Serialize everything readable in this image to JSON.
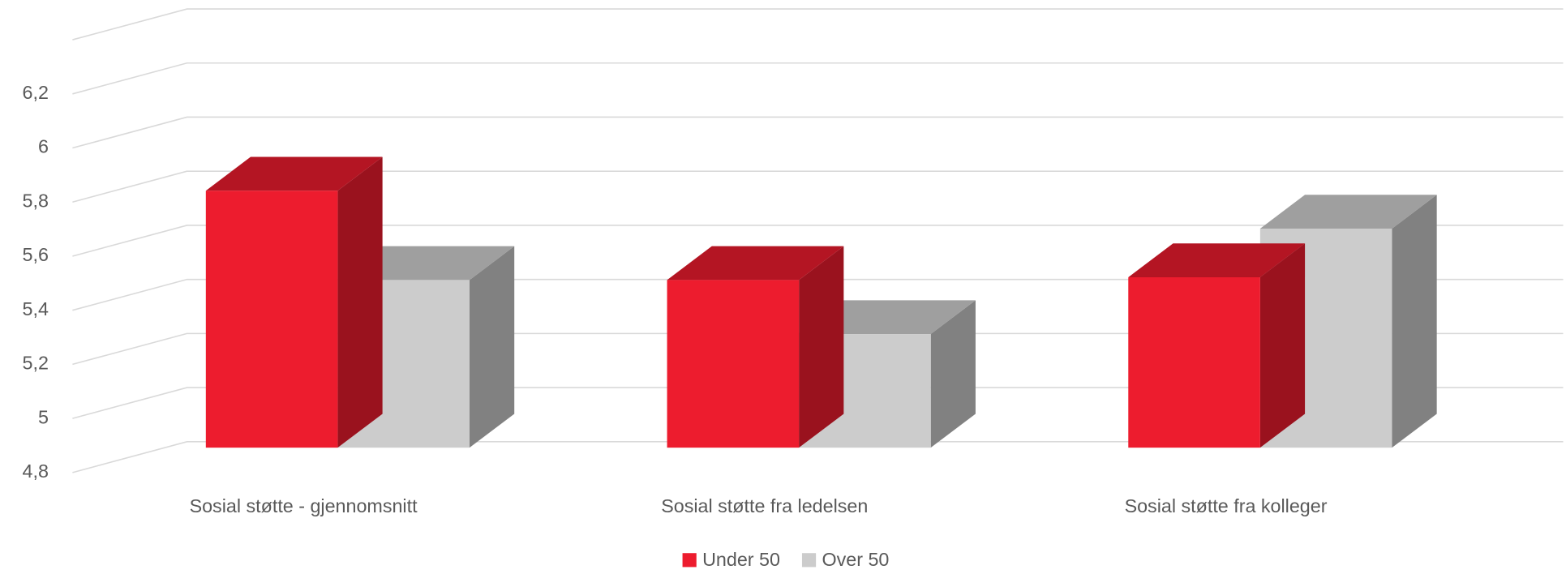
{
  "chart_data": {
    "type": "bar3d",
    "categories": [
      "Sosial støtte - gjennomsnitt",
      "Sosial støtte fra ledelsen",
      "Sosial støtte fra kolleger"
    ],
    "series": [
      {
        "name": "Under 50",
        "color": "#ed1c2e",
        "values": [
          5.75,
          5.42,
          5.43
        ]
      },
      {
        "name": "Over 50",
        "color": "#cccccc",
        "values": [
          5.42,
          5.22,
          5.61
        ]
      }
    ],
    "ylim": [
      4.8,
      6.4
    ],
    "yticks": [
      {
        "value": 4.8,
        "label": "4,8"
      },
      5,
      {
        "value": 5.2,
        "label": "5,2"
      },
      {
        "value": 5.4,
        "label": "5,4"
      },
      {
        "value": 5.6,
        "label": "5,6"
      },
      {
        "value": 5.8,
        "label": "5,8"
      },
      6,
      {
        "value": 6.2,
        "label": "6,2"
      }
    ],
    "grid": true,
    "legend": "bottom"
  }
}
